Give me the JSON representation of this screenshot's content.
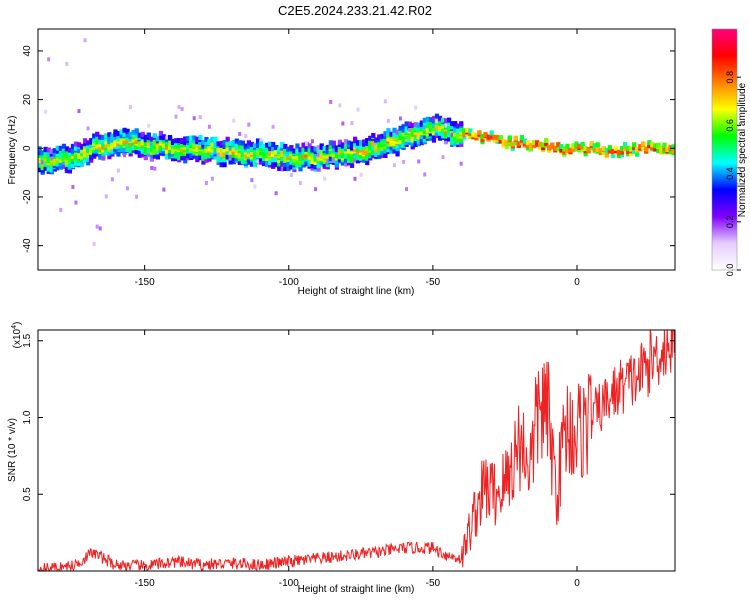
{
  "figure": {
    "title": "C2E5.2024.233.21.42.R02"
  },
  "chart_data": [
    {
      "type": "heatmap",
      "xlabel": "Height of straight line (km)",
      "ylabel": "Frequency (Hz)",
      "xlim": [
        -187,
        34
      ],
      "ylim": [
        -50,
        49
      ],
      "xticks": [
        -150,
        -100,
        -50,
        0
      ],
      "yticks": [
        -40,
        -20,
        0,
        20,
        40
      ],
      "colorbar": {
        "label": "Normalized spectral amplitude",
        "range": [
          0.0,
          1.0
        ],
        "ticks": [
          0.0,
          0.2,
          0.4,
          0.6,
          0.8
        ],
        "colormap": [
          "#ffffff",
          "#e6ccff",
          "#8000ff",
          "#0000ff",
          "#00ffff",
          "#00ff00",
          "#ffff00",
          "#ff8000",
          "#ff0000",
          "#ff0080"
        ]
      },
      "ridge_frequency": {
        "x": [
          -187,
          -175,
          -165,
          -155,
          -145,
          -135,
          -125,
          -115,
          -105,
          -95,
          -85,
          -75,
          -65,
          -55,
          -48,
          -44,
          -40,
          -35,
          -30,
          -25,
          -20,
          -15,
          -10,
          -5,
          0,
          5,
          10,
          15,
          20,
          34
        ],
        "y": [
          -5,
          -4,
          1,
          2,
          1,
          0,
          -1,
          -2,
          -3,
          -4,
          -3,
          -1,
          2,
          6,
          9,
          7,
          6,
          5,
          4,
          3,
          2,
          1,
          1,
          0,
          0,
          0,
          -1,
          -1,
          0,
          0
        ],
        "peak_amplitude_region": [
          -40,
          34
        ]
      }
    },
    {
      "type": "line",
      "xlabel": "Height of straight line (km)",
      "ylabel": "SNR (10 * v/v)",
      "yscale_label": "(x10",
      "yscale_exp": "4",
      "yscale_close": ")",
      "xlim": [
        -187,
        34
      ],
      "ylim": [
        0.0,
        1.57
      ],
      "xticks": [
        -150,
        -100,
        -50,
        0
      ],
      "yticks": [
        0.5,
        1.0,
        1.5
      ],
      "series": [
        {
          "color": "#ee2222",
          "x": [
            -187,
            -175,
            -168,
            -160,
            -150,
            -140,
            -130,
            -120,
            -110,
            -100,
            -90,
            -80,
            -70,
            -60,
            -50,
            -45,
            -40,
            -36,
            -32,
            -28,
            -24,
            -20,
            -16,
            -13,
            -10,
            -7,
            -4,
            0,
            5,
            10,
            15,
            20,
            25,
            30,
            34
          ],
          "y": [
            0.01,
            0.03,
            0.12,
            0.04,
            0.03,
            0.06,
            0.04,
            0.05,
            0.04,
            0.06,
            0.08,
            0.1,
            0.12,
            0.15,
            0.15,
            0.1,
            0.08,
            0.35,
            0.55,
            0.5,
            0.6,
            0.85,
            0.7,
            1.1,
            1.0,
            0.5,
            0.95,
            0.9,
            1.0,
            1.1,
            1.2,
            1.25,
            1.35,
            1.45,
            1.5
          ]
        }
      ]
    }
  ]
}
